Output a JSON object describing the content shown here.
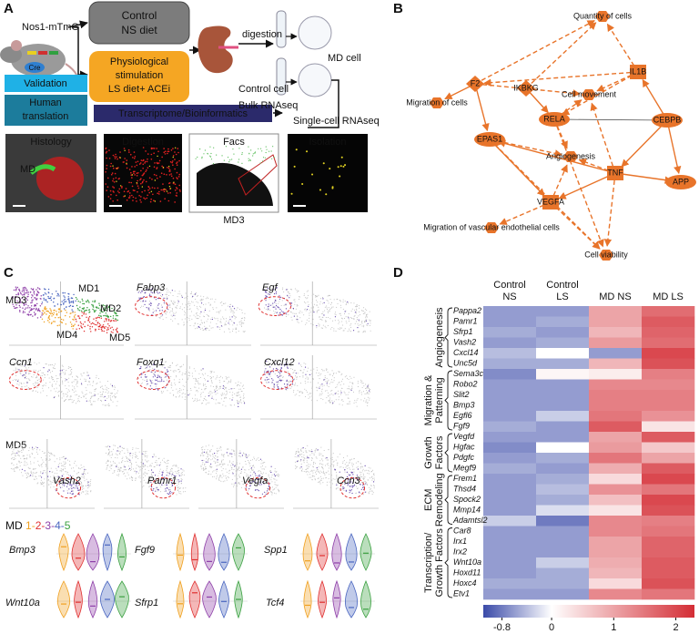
{
  "A": {
    "label": "A",
    "mouse": "Nos1-mTmG",
    "cre": "Cre",
    "control": [
      "Control",
      "NS diet"
    ],
    "stimulation": [
      "Physiological",
      "stimulation",
      "LS diet+ ACEi"
    ],
    "digestion": "digestion",
    "md_cell": "MD cell",
    "control_cell": "Control cell",
    "bulk": "Bulk RNAseq",
    "single_cell": "Single-cell RNAseq",
    "validation": "Validation",
    "human": [
      "Human",
      "translation"
    ],
    "transcriptome": "Transcriptome/Bioinformatics",
    "images": [
      "Histology",
      "Digestion",
      "Facs",
      "Isolation"
    ],
    "md": "MD",
    "md3": "MD3"
  },
  "B": {
    "label": "B",
    "nodes": [
      {
        "label": "Quantity of cells"
      },
      {
        "label": "IKBKG"
      },
      {
        "label": "Cell movement"
      },
      {
        "label": "IL1B"
      },
      {
        "label": "F2"
      },
      {
        "label": "Migration of cells"
      },
      {
        "label": "RELA"
      },
      {
        "label": "CEBPB"
      },
      {
        "label": "EPAS1"
      },
      {
        "label": "Angiogenesis"
      },
      {
        "label": "TNF"
      },
      {
        "label": "APP"
      },
      {
        "label": "VEGFA"
      },
      {
        "label": "Migration of vascular endothelial cells"
      },
      {
        "label": "Cell viability"
      }
    ]
  },
  "C": {
    "label": "C",
    "clusters": [
      "MD1",
      "MD2",
      "MD3",
      "MD4",
      "MD5"
    ],
    "cluster_colors": [
      "#f0a020",
      "#e03030",
      "#8e3fa8",
      "#4a66c0",
      "#3aa040"
    ],
    "row1_genes": [
      "Fabp3",
      "Egf"
    ],
    "row2_genes": [
      "Ccn1",
      "Foxq1",
      "Cxcl12"
    ],
    "md5_label": "MD5",
    "row3_genes": [
      "Vash2",
      "Pamr1",
      "Vegfa",
      "Ccn3"
    ],
    "md_label": "MD",
    "md_numbers": [
      "1",
      "2",
      "3",
      "4",
      "5"
    ],
    "separator": "-",
    "violin_genes": [
      "Bmp3",
      "Fgf9",
      "Spp1",
      "Wnt10a",
      "Sfrp1",
      "Tcf4"
    ]
  },
  "D": {
    "label": "D",
    "columns": [
      [
        "Control",
        "NS"
      ],
      [
        "Control",
        "LS"
      ],
      [
        "MD NS"
      ],
      [
        "MD LS"
      ]
    ],
    "groups": [
      {
        "name": [
          "Angiogenesis"
        ],
        "genes": [
          "Pappa2",
          "Pamr1",
          "Sfrp1",
          "Vash2",
          "Cxcl14",
          "Unc5d"
        ],
        "values": [
          [
            -0.6,
            -0.6,
            1.0,
            1.6
          ],
          [
            -0.6,
            -0.5,
            1.0,
            1.8
          ],
          [
            -0.5,
            -0.6,
            0.8,
            1.7
          ],
          [
            -0.6,
            -0.5,
            1.1,
            1.6
          ],
          [
            -0.4,
            0.0,
            -0.6,
            2.0
          ],
          [
            -0.5,
            -0.5,
            0.8,
            1.9
          ]
        ]
      },
      {
        "name": [
          "Migration &",
          "Patterning"
        ],
        "genes": [
          "Sema3c",
          "Robo2",
          "Slit2",
          "Bmp3",
          "Egfl6",
          "Fgf9"
        ],
        "values": [
          [
            -0.7,
            0.1,
            0.2,
            1.4
          ],
          [
            -0.6,
            -0.6,
            1.3,
            1.3
          ],
          [
            -0.6,
            -0.6,
            1.4,
            1.4
          ],
          [
            -0.6,
            -0.6,
            1.4,
            1.4
          ],
          [
            -0.6,
            -0.3,
            1.5,
            1.2
          ],
          [
            -0.5,
            -0.6,
            1.8,
            0.3
          ]
        ]
      },
      {
        "name": [
          "Growth",
          "Factors"
        ],
        "genes": [
          "Vegfd",
          "Hgfac",
          "Pdgfc",
          "Megf9"
        ],
        "values": [
          [
            -0.6,
            -0.6,
            1.0,
            1.8
          ],
          [
            -0.7,
            0.0,
            1.1,
            0.6
          ],
          [
            -0.6,
            -0.5,
            1.5,
            1.0
          ],
          [
            -0.5,
            -0.6,
            0.9,
            1.8
          ]
        ]
      },
      {
        "name": [
          "ECM",
          "Remodeling"
        ],
        "genes": [
          "Frem1",
          "Thsd4",
          "Spock2",
          "Mmp14",
          "Adamtsl2"
        ],
        "values": [
          [
            -0.6,
            -0.5,
            0.4,
            2.0
          ],
          [
            -0.6,
            -0.4,
            1.2,
            1.5
          ],
          [
            -0.6,
            -0.5,
            0.7,
            2.0
          ],
          [
            -0.6,
            -0.2,
            0.3,
            1.9
          ],
          [
            -0.3,
            -0.8,
            1.3,
            1.4
          ]
        ]
      },
      {
        "name": [
          "Transcription/",
          "Growth Factors"
        ],
        "genes": [
          "Car8",
          "Irx1",
          "Irx2",
          "Wnt10a",
          "Hoxd11",
          "Hoxc4",
          "Etv1"
        ],
        "values": [
          [
            -0.6,
            -0.6,
            1.3,
            1.5
          ],
          [
            -0.6,
            -0.6,
            1.0,
            1.7
          ],
          [
            -0.6,
            -0.6,
            1.0,
            1.7
          ],
          [
            -0.6,
            -0.3,
            0.9,
            1.8
          ],
          [
            -0.6,
            -0.5,
            0.8,
            1.8
          ],
          [
            -0.5,
            -0.5,
            0.4,
            1.9
          ],
          [
            -0.6,
            -0.6,
            1.3,
            1.5
          ]
        ]
      }
    ],
    "colorbar": {
      "range": [
        -1.1,
        2.3
      ],
      "ticks": [
        -0.8,
        0,
        1,
        2
      ],
      "colors": [
        "#3a4aa8",
        "#ffffff",
        "#d42d35"
      ]
    }
  }
}
